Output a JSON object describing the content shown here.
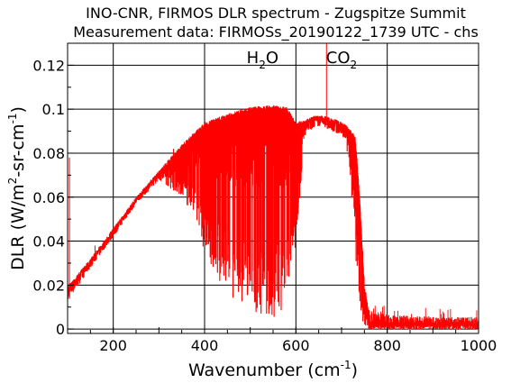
{
  "chart_data": {
    "type": "line",
    "title": "INO-CNR, FIRMOS DLR spectrum - Zugspitze Summit",
    "subtitle": "Measurement data: FIRMOSs_20190122_1739 UTC - chs",
    "xlabel": {
      "main": "Wavenumber (cm",
      "sup": "-1",
      "tail": ")"
    },
    "ylabel": {
      "p1": "DLR (W/m",
      "sup1": "2",
      "p2": "-sr-cm",
      "sup2": "-1",
      "p3": ")"
    },
    "xlim": [
      100,
      1000
    ],
    "ylim": [
      -0.002,
      0.13
    ],
    "x_ticks": [
      200,
      400,
      600,
      800,
      1000
    ],
    "x_tick_labels": [
      "200",
      "400",
      "600",
      "800",
      "1000"
    ],
    "y_ticks": [
      0,
      0.02,
      0.04,
      0.06,
      0.08,
      0.1,
      0.12
    ],
    "y_tick_labels": [
      "0",
      "0.02",
      "0.04",
      "0.06",
      "0.08",
      "0.1",
      "0.12"
    ],
    "grid": true,
    "series_color": "#ff0000",
    "annotations": [
      {
        "base": "H",
        "sub": "2",
        "tail": "O",
        "x": 527,
        "y": 0.121
      },
      {
        "base": "CO",
        "sub": "2",
        "tail": "",
        "x": 700,
        "y": 0.121
      }
    ],
    "envelope": {
      "x": [
        100,
        110,
        150,
        200,
        250,
        300,
        350,
        380,
        400,
        450,
        500,
        550,
        580,
        600,
        620,
        640,
        660,
        680,
        700,
        710,
        730,
        740,
        750,
        760,
        800,
        900,
        1000
      ],
      "top": [
        0.02,
        0.022,
        0.032,
        0.046,
        0.06,
        0.072,
        0.084,
        0.09,
        0.094,
        0.098,
        0.101,
        0.102,
        0.101,
        0.094,
        0.095,
        0.097,
        0.097,
        0.096,
        0.094,
        0.093,
        0.088,
        0.06,
        0.02,
        0.008,
        0.006,
        0.005,
        0.005
      ],
      "min": [
        0.012,
        0.016,
        0.028,
        0.042,
        0.057,
        0.068,
        0.06,
        0.05,
        0.035,
        0.015,
        0.008,
        0.005,
        0.004,
        0.04,
        0.088,
        0.092,
        0.092,
        0.09,
        0.088,
        0.086,
        0.035,
        0.005,
        0.001,
        0.0,
        0.0,
        0.0,
        0.0
      ]
    },
    "peaks": [
      {
        "x": 104,
        "y": 0.078
      },
      {
        "x": 160,
        "y": 0.038
      },
      {
        "x": 332,
        "y": 0.082
      },
      {
        "x": 667,
        "y": 0.13
      }
    ]
  }
}
